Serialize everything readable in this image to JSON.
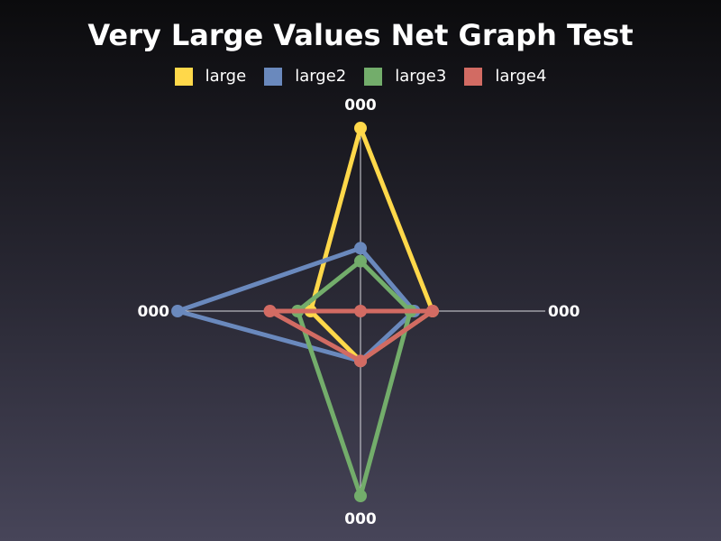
{
  "chart_data": {
    "type": "radar",
    "title": "Very Large Values Net Graph Test",
    "axes": [
      "000",
      "000",
      "000",
      "000"
    ],
    "axis_max": 1.0,
    "grid": true,
    "legend_position": "top",
    "series": [
      {
        "name": "large",
        "color": "#ffd84a",
        "values": [
          0.99,
          0.39,
          0.27,
          0.27
        ]
      },
      {
        "name": "large2",
        "color": "#6a89bd",
        "values": [
          0.34,
          0.29,
          0.27,
          0.99
        ]
      },
      {
        "name": "large3",
        "color": "#73ad6b",
        "values": [
          0.27,
          0.27,
          1.0,
          0.34
        ]
      },
      {
        "name": "large4",
        "color": "#d26b63",
        "values": [
          0.0,
          0.39,
          0.27,
          0.49
        ]
      }
    ]
  }
}
